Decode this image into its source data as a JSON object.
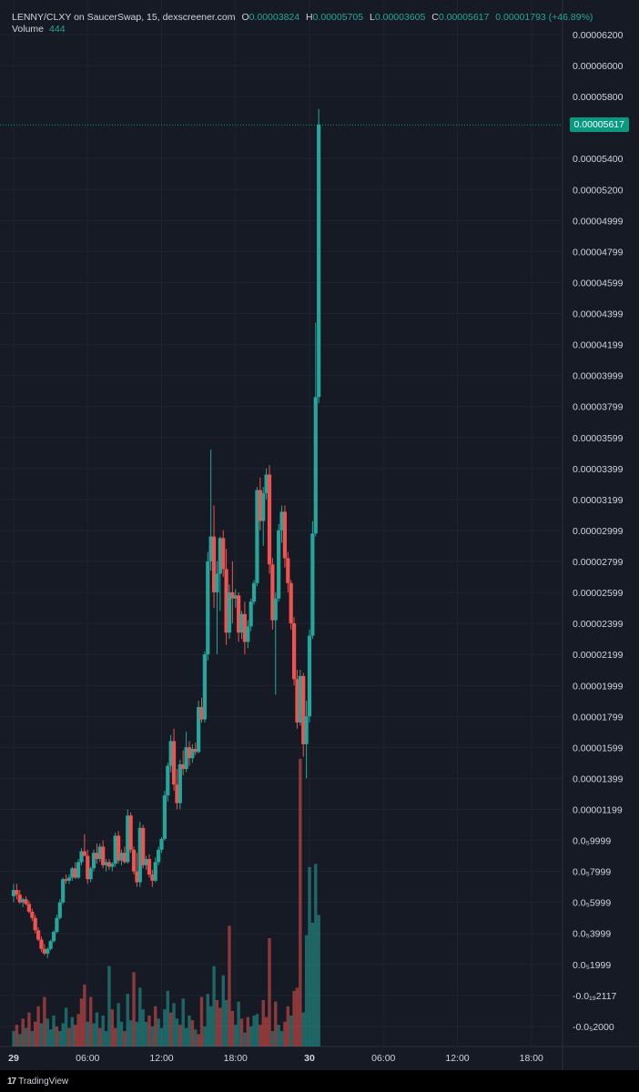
{
  "header": {
    "symbol": "LENNY/CLXY on SaucerSwap, 15, dexscreener.com",
    "o_label": "O",
    "o_value": "0.00003824",
    "h_label": "H",
    "h_value": "0.00005705",
    "l_label": "L",
    "l_value": "0.00003605",
    "c_label": "C",
    "c_value": "0.00005617",
    "change": "0.00001793 (+46.89%)",
    "volume_label": "Volume",
    "volume_value": "444"
  },
  "current_price": "0.00005617",
  "branding": "TradingView",
  "colors": {
    "up": "#26a69a",
    "down": "#ef5350",
    "background": "#161a25",
    "price_tag": "#089981"
  },
  "chart_data": {
    "type": "candlestick",
    "y_ticks": [
      "0.00006200",
      "0.00006000",
      "0.00005800",
      "0.00005400",
      "0.00005200",
      "0.00004999",
      "0.00004799",
      "0.00004599",
      "0.00004399",
      "0.00004199",
      "0.00003999",
      "0.00003799",
      "0.00003599",
      "0.00003399",
      "0.00003199",
      "0.00002999",
      "0.00002799",
      "0.00002599",
      "0.00002399",
      "0.00002199",
      "0.00001999",
      "0.00001799",
      "0.00001599",
      "0.00001399",
      "0.00001199",
      "0.0₅9999",
      "0.0₅7999",
      "0.0₅5999",
      "0.0₅3999",
      "0.0₅1999",
      "-0.0₁₉2117",
      "-0.0₅2000"
    ],
    "y_tick_values": [
      62.0,
      60.0,
      58.0,
      54.0,
      52.0,
      49.99,
      47.99,
      45.99,
      43.99,
      41.99,
      39.99,
      37.99,
      35.99,
      33.99,
      31.99,
      29.99,
      27.99,
      25.99,
      23.99,
      21.99,
      19.99,
      17.99,
      15.99,
      13.99,
      11.99,
      9.999,
      7.999,
      5.999,
      3.999,
      1.999,
      0.0,
      -2.0
    ],
    "x_ticks": [
      "29",
      "06:00",
      "12:00",
      "18:00",
      "30",
      "06:00",
      "12:00",
      "18:00"
    ],
    "x_tick_hours": [
      0,
      6,
      12,
      18,
      24,
      30,
      36,
      42
    ],
    "x_range": [
      -0.5,
      46
    ],
    "ohlc": [
      [
        0.0,
        6.4,
        7.2,
        6.0,
        6.8
      ],
      [
        0.25,
        6.8,
        7.2,
        6.2,
        6.5
      ],
      [
        0.5,
        6.5,
        6.8,
        5.9,
        6.0
      ],
      [
        0.75,
        6.0,
        6.3,
        5.7,
        6.2
      ],
      [
        1.0,
        6.2,
        6.4,
        5.8,
        5.9
      ],
      [
        1.25,
        5.9,
        6.1,
        5.3,
        5.4
      ],
      [
        1.5,
        5.4,
        5.6,
        4.8,
        5.0
      ],
      [
        1.75,
        5.0,
        5.2,
        4.0,
        4.2
      ],
      [
        2.0,
        4.2,
        4.4,
        3.5,
        3.6
      ],
      [
        2.25,
        3.6,
        3.8,
        2.8,
        3.0
      ],
      [
        2.5,
        3.0,
        3.3,
        2.6,
        2.7
      ],
      [
        2.75,
        2.7,
        3.1,
        2.4,
        3.0
      ],
      [
        3.0,
        3.0,
        3.6,
        2.9,
        3.5
      ],
      [
        3.25,
        3.5,
        4.2,
        3.4,
        4.1
      ],
      [
        3.5,
        4.1,
        5.2,
        4.0,
        5.0
      ],
      [
        3.75,
        5.0,
        6.2,
        4.9,
        6.0
      ],
      [
        4.0,
        6.0,
        7.6,
        5.9,
        7.5
      ],
      [
        4.25,
        7.5,
        7.8,
        7.2,
        7.4
      ],
      [
        4.5,
        7.4,
        7.8,
        7.2,
        7.6
      ],
      [
        4.75,
        7.6,
        8.3,
        7.4,
        8.2
      ],
      [
        5.0,
        8.2,
        8.6,
        7.5,
        7.6
      ],
      [
        5.25,
        7.6,
        8.8,
        7.5,
        8.6
      ],
      [
        5.5,
        8.6,
        9.5,
        8.4,
        9.3
      ],
      [
        5.75,
        9.3,
        10.4,
        9.1,
        9.0
      ],
      [
        6.0,
        9.0,
        9.4,
        7.2,
        7.5
      ],
      [
        6.25,
        7.5,
        8.3,
        7.3,
        8.2
      ],
      [
        6.5,
        8.2,
        9.4,
        8.0,
        9.2
      ],
      [
        6.75,
        9.2,
        9.8,
        8.5,
        8.8
      ],
      [
        7.0,
        8.8,
        9.8,
        8.6,
        9.6
      ],
      [
        7.25,
        9.6,
        10.0,
        8.2,
        8.4
      ],
      [
        7.5,
        8.4,
        8.8,
        8.0,
        8.6
      ],
      [
        7.75,
        8.6,
        8.8,
        8.1,
        8.3
      ],
      [
        8.0,
        8.3,
        8.6,
        8.0,
        8.5
      ],
      [
        8.25,
        8.5,
        10.5,
        8.3,
        10.3
      ],
      [
        8.5,
        10.3,
        10.6,
        8.5,
        8.7
      ],
      [
        8.75,
        8.7,
        9.4,
        8.4,
        9.2
      ],
      [
        9.0,
        9.2,
        9.6,
        8.5,
        8.6
      ],
      [
        9.25,
        8.6,
        12.0,
        8.5,
        11.6
      ],
      [
        9.5,
        11.6,
        11.8,
        9.2,
        9.4
      ],
      [
        9.75,
        9.4,
        9.6,
        7.8,
        8.0
      ],
      [
        10.0,
        8.0,
        9.2,
        7.0,
        7.3
      ],
      [
        10.25,
        7.3,
        11.2,
        7.0,
        10.8
      ],
      [
        10.5,
        10.8,
        11.0,
        8.2,
        8.4
      ],
      [
        10.75,
        8.4,
        9.0,
        8.1,
        8.8
      ],
      [
        11.0,
        8.8,
        9.1,
        7.6,
        7.8
      ],
      [
        11.25,
        7.8,
        8.1,
        7.0,
        7.4
      ],
      [
        11.5,
        7.4,
        8.9,
        7.3,
        8.6
      ],
      [
        11.75,
        8.6,
        9.6,
        8.4,
        9.4
      ],
      [
        12.0,
        9.4,
        10.2,
        9.2,
        10.1
      ],
      [
        12.25,
        10.1,
        13.2,
        10.0,
        12.9
      ],
      [
        12.5,
        12.9,
        15.0,
        12.5,
        14.8
      ],
      [
        12.75,
        14.8,
        16.8,
        14.4,
        16.4
      ],
      [
        13.0,
        16.4,
        17.2,
        13.2,
        13.6
      ],
      [
        13.25,
        13.6,
        14.6,
        12.0,
        12.4
      ],
      [
        13.5,
        12.4,
        15.2,
        12.0,
        14.9
      ],
      [
        13.75,
        14.9,
        15.8,
        14.2,
        14.6
      ],
      [
        14.0,
        14.6,
        17.0,
        14.4,
        16.0
      ],
      [
        14.25,
        16.0,
        16.4,
        14.8,
        15.3
      ],
      [
        14.5,
        15.3,
        16.2,
        15.0,
        15.9
      ],
      [
        14.75,
        15.9,
        16.3,
        15.5,
        15.7
      ],
      [
        15.0,
        15.7,
        19.0,
        15.6,
        18.6
      ],
      [
        15.25,
        18.6,
        19.2,
        17.6,
        17.8
      ],
      [
        15.5,
        17.8,
        22.2,
        17.6,
        22.0
      ],
      [
        15.75,
        22.0,
        28.6,
        21.6,
        28.0
      ],
      [
        16.0,
        28.0,
        35.2,
        27.4,
        29.6
      ],
      [
        16.25,
        29.6,
        31.6,
        25.0,
        26.0
      ],
      [
        16.5,
        26.0,
        28.0,
        22.0,
        27.2
      ],
      [
        16.75,
        27.2,
        29.6,
        24.8,
        29.5
      ],
      [
        17.0,
        29.5,
        30.0,
        27.0,
        27.5
      ],
      [
        17.25,
        27.5,
        28.8,
        22.6,
        23.4
      ],
      [
        17.5,
        23.4,
        26.5,
        23.0,
        26.0
      ],
      [
        17.75,
        26.0,
        28.0,
        24.0,
        25.6
      ],
      [
        18.0,
        25.6,
        26.2,
        25.0,
        25.8
      ],
      [
        18.25,
        25.8,
        26.0,
        22.8,
        23.4
      ],
      [
        18.5,
        23.4,
        24.8,
        23.0,
        24.6
      ],
      [
        18.75,
        24.6,
        25.4,
        22.0,
        22.8
      ],
      [
        19.0,
        22.8,
        24.2,
        22.4,
        23.8
      ],
      [
        19.25,
        23.8,
        25.6,
        23.5,
        25.4
      ],
      [
        19.5,
        25.4,
        26.8,
        25.2,
        26.6
      ],
      [
        19.75,
        26.6,
        32.8,
        26.4,
        32.6
      ],
      [
        20.0,
        32.6,
        33.4,
        30.0,
        30.6
      ],
      [
        20.25,
        30.6,
        32.8,
        29.0,
        32.4
      ],
      [
        20.5,
        32.4,
        34.0,
        32.0,
        33.6
      ],
      [
        20.75,
        33.6,
        34.2,
        27.2,
        27.8
      ],
      [
        21.0,
        27.8,
        28.2,
        23.6,
        24.2
      ],
      [
        21.25,
        24.2,
        26.0,
        19.4,
        25.6
      ],
      [
        21.5,
        25.6,
        30.4,
        25.4,
        30.0
      ],
      [
        21.75,
        30.0,
        31.6,
        29.2,
        31.2
      ],
      [
        22.0,
        31.2,
        31.6,
        27.6,
        28.2
      ],
      [
        22.25,
        28.2,
        28.6,
        26.0,
        26.6
      ],
      [
        22.5,
        26.6,
        26.8,
        23.6,
        24.0
      ],
      [
        22.75,
        24.0,
        24.4,
        20.0,
        20.4
      ],
      [
        23.0,
        20.4,
        21.0,
        17.2,
        17.6
      ],
      [
        23.25,
        17.6,
        21.0,
        17.4,
        20.6
      ],
      [
        23.5,
        20.6,
        20.8,
        15.4,
        16.2
      ],
      [
        23.75,
        16.2,
        19.0,
        14.0,
        18.0
      ],
      [
        24.0,
        18.0,
        23.6,
        17.6,
        23.2
      ],
      [
        24.25,
        23.2,
        30.6,
        23.0,
        29.8
      ],
      [
        24.5,
        29.8,
        43.4,
        29.6,
        38.6
      ],
      [
        24.75,
        38.6,
        57.2,
        38.2,
        56.2
      ]
    ],
    "volumes": [
      [
        0.0,
        1.0,
        "up"
      ],
      [
        0.25,
        1.4,
        "down"
      ],
      [
        0.5,
        0.8,
        "up"
      ],
      [
        0.75,
        1.8,
        "down"
      ],
      [
        1.0,
        1.2,
        "up"
      ],
      [
        1.25,
        2.2,
        "down"
      ],
      [
        1.5,
        1.0,
        "up"
      ],
      [
        1.75,
        1.6,
        "down"
      ],
      [
        2.0,
        2.6,
        "down"
      ],
      [
        2.25,
        1.5,
        "up"
      ],
      [
        2.5,
        3.2,
        "down"
      ],
      [
        2.75,
        1.8,
        "up"
      ],
      [
        3.0,
        1.1,
        "up"
      ],
      [
        3.25,
        2.0,
        "up"
      ],
      [
        3.5,
        1.3,
        "down"
      ],
      [
        3.75,
        1.0,
        "up"
      ],
      [
        4.0,
        1.5,
        "up"
      ],
      [
        4.25,
        2.5,
        "up"
      ],
      [
        4.5,
        1.2,
        "down"
      ],
      [
        4.75,
        1.9,
        "up"
      ],
      [
        5.0,
        1.4,
        "down"
      ],
      [
        5.25,
        2.1,
        "down"
      ],
      [
        5.5,
        3.1,
        "down"
      ],
      [
        5.75,
        4.0,
        "down"
      ],
      [
        6.0,
        1.6,
        "up"
      ],
      [
        6.25,
        3.2,
        "down"
      ],
      [
        6.5,
        1.5,
        "up"
      ],
      [
        6.75,
        2.2,
        "up"
      ],
      [
        7.0,
        1.2,
        "down"
      ],
      [
        7.25,
        2.0,
        "up"
      ],
      [
        7.5,
        1.0,
        "up"
      ],
      [
        7.75,
        5.2,
        "up"
      ],
      [
        8.0,
        2.4,
        "down"
      ],
      [
        8.25,
        1.2,
        "down"
      ],
      [
        8.5,
        2.8,
        "up"
      ],
      [
        8.75,
        1.6,
        "up"
      ],
      [
        9.0,
        1.0,
        "down"
      ],
      [
        9.25,
        3.4,
        "up"
      ],
      [
        9.5,
        1.7,
        "up"
      ],
      [
        9.75,
        4.8,
        "down"
      ],
      [
        10.0,
        1.6,
        "up"
      ],
      [
        10.25,
        3.8,
        "up"
      ],
      [
        10.5,
        2.4,
        "up"
      ],
      [
        10.75,
        1.6,
        "up"
      ],
      [
        11.0,
        2.0,
        "down"
      ],
      [
        11.25,
        1.3,
        "up"
      ],
      [
        11.5,
        2.6,
        "down"
      ],
      [
        11.75,
        1.8,
        "up"
      ],
      [
        12.0,
        1.2,
        "up"
      ],
      [
        12.25,
        2.4,
        "up"
      ],
      [
        12.5,
        3.6,
        "up"
      ],
      [
        12.75,
        2.2,
        "down"
      ],
      [
        13.0,
        2.8,
        "up"
      ],
      [
        13.25,
        1.8,
        "up"
      ],
      [
        13.5,
        1.4,
        "down"
      ],
      [
        13.75,
        3.1,
        "up"
      ],
      [
        14.0,
        1.2,
        "up"
      ],
      [
        14.25,
        2.0,
        "up"
      ],
      [
        14.5,
        1.7,
        "down"
      ],
      [
        14.75,
        1.1,
        "up"
      ],
      [
        15.0,
        0.8,
        "down"
      ],
      [
        15.25,
        3.2,
        "down"
      ],
      [
        15.5,
        1.3,
        "up"
      ],
      [
        15.75,
        3.4,
        "up"
      ],
      [
        16.0,
        2.6,
        "up"
      ],
      [
        16.25,
        5.2,
        "up"
      ],
      [
        16.5,
        3.0,
        "down"
      ],
      [
        16.75,
        2.5,
        "down"
      ],
      [
        17.0,
        4.6,
        "up"
      ],
      [
        17.25,
        3.0,
        "up"
      ],
      [
        17.5,
        7.8,
        "down"
      ],
      [
        17.75,
        2.3,
        "down"
      ],
      [
        18.0,
        1.4,
        "up"
      ],
      [
        18.25,
        2.9,
        "up"
      ],
      [
        18.5,
        1.8,
        "down"
      ],
      [
        18.75,
        0.9,
        "up"
      ],
      [
        19.0,
        1.9,
        "down"
      ],
      [
        19.25,
        1.3,
        "up"
      ],
      [
        19.5,
        2.0,
        "up"
      ],
      [
        19.75,
        2.1,
        "up"
      ],
      [
        20.0,
        1.4,
        "down"
      ],
      [
        20.25,
        3.0,
        "down"
      ],
      [
        20.5,
        1.9,
        "down"
      ],
      [
        20.75,
        7.0,
        "down"
      ],
      [
        21.0,
        1.0,
        "up"
      ],
      [
        21.25,
        2.9,
        "down"
      ],
      [
        21.5,
        1.4,
        "up"
      ],
      [
        21.75,
        1.0,
        "up"
      ],
      [
        22.0,
        1.6,
        "down"
      ],
      [
        22.25,
        2.6,
        "down"
      ],
      [
        22.5,
        2.0,
        "up"
      ],
      [
        22.75,
        3.6,
        "down"
      ],
      [
        23.0,
        3.8,
        "down"
      ],
      [
        23.25,
        18.6,
        "down"
      ],
      [
        23.5,
        2.2,
        "up"
      ],
      [
        23.75,
        7.2,
        "up"
      ],
      [
        24.0,
        11.6,
        "up"
      ],
      [
        24.25,
        8.0,
        "up"
      ],
      [
        24.5,
        11.8,
        "up"
      ],
      [
        24.75,
        8.5,
        "up"
      ]
    ]
  }
}
